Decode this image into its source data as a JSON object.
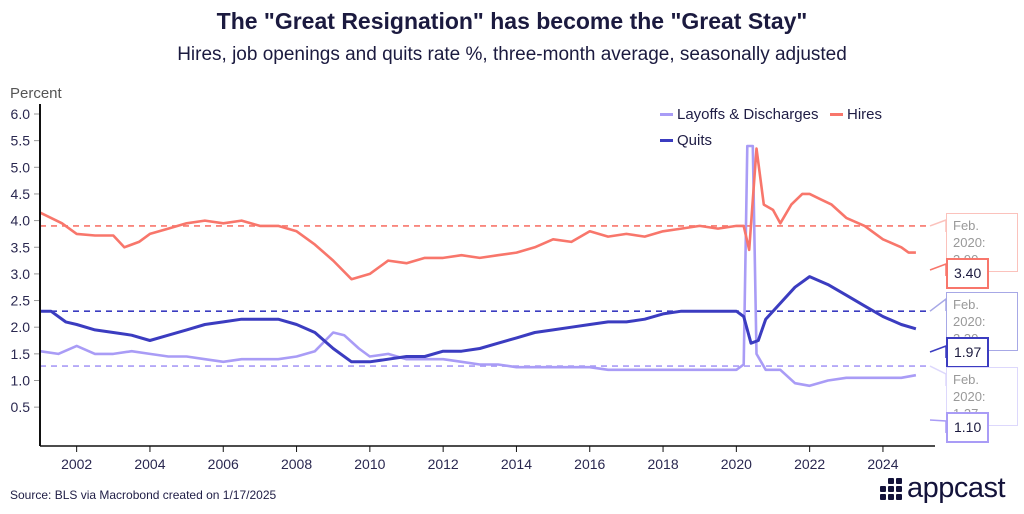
{
  "chart_data": {
    "type": "line",
    "title": "The \"Great Resignation\" has become the \"Great Stay\"",
    "subtitle": "Hires, job openings and quits rate %, three-month average, seasonally adjusted",
    "ylabel": "Percent",
    "ylim": [
      0.5,
      6.0
    ],
    "xlim": [
      2001,
      2025
    ],
    "yticks": [
      "6.0",
      "5.5",
      "5.0",
      "4.5",
      "4.0",
      "3.5",
      "3.0",
      "2.5",
      "2.0",
      "1.5",
      "1.0",
      "0.5"
    ],
    "xticks": [
      "2002",
      "2004",
      "2006",
      "2008",
      "2010",
      "2012",
      "2014",
      "2016",
      "2018",
      "2020",
      "2022",
      "2024"
    ],
    "legend_position": "top-right",
    "series": [
      {
        "name": "Hires",
        "color": "#f8766b",
        "baseline": 3.9,
        "baseline_label": "Feb. 2020:",
        "baseline_value": "3.90",
        "latest": "3.40",
        "points": [
          [
            2001,
            4.15
          ],
          [
            2001.3,
            4.05
          ],
          [
            2001.6,
            3.95
          ],
          [
            2002,
            3.75
          ],
          [
            2002.5,
            3.72
          ],
          [
            2003,
            3.72
          ],
          [
            2003.3,
            3.5
          ],
          [
            2003.7,
            3.6
          ],
          [
            2004,
            3.75
          ],
          [
            2004.5,
            3.85
          ],
          [
            2005,
            3.95
          ],
          [
            2005.5,
            4.0
          ],
          [
            2006,
            3.95
          ],
          [
            2006.5,
            4.0
          ],
          [
            2007,
            3.9
          ],
          [
            2007.5,
            3.9
          ],
          [
            2008,
            3.8
          ],
          [
            2008.5,
            3.55
          ],
          [
            2009,
            3.25
          ],
          [
            2009.5,
            2.9
          ],
          [
            2010,
            3.0
          ],
          [
            2010.5,
            3.25
          ],
          [
            2011,
            3.2
          ],
          [
            2011.5,
            3.3
          ],
          [
            2012,
            3.3
          ],
          [
            2012.5,
            3.35
          ],
          [
            2013,
            3.3
          ],
          [
            2013.5,
            3.35
          ],
          [
            2014,
            3.4
          ],
          [
            2014.5,
            3.5
          ],
          [
            2015,
            3.65
          ],
          [
            2015.5,
            3.6
          ],
          [
            2016,
            3.8
          ],
          [
            2016.5,
            3.7
          ],
          [
            2017,
            3.75
          ],
          [
            2017.5,
            3.7
          ],
          [
            2018,
            3.8
          ],
          [
            2018.5,
            3.85
          ],
          [
            2019,
            3.9
          ],
          [
            2019.5,
            3.85
          ],
          [
            2020,
            3.9
          ],
          [
            2020.2,
            3.9
          ],
          [
            2020.35,
            3.45
          ],
          [
            2020.55,
            5.35
          ],
          [
            2020.75,
            4.3
          ],
          [
            2021,
            4.2
          ],
          [
            2021.2,
            3.95
          ],
          [
            2021.5,
            4.3
          ],
          [
            2021.8,
            4.5
          ],
          [
            2022,
            4.5
          ],
          [
            2022.3,
            4.4
          ],
          [
            2022.6,
            4.3
          ],
          [
            2023,
            4.05
          ],
          [
            2023.5,
            3.9
          ],
          [
            2024,
            3.65
          ],
          [
            2024.5,
            3.5
          ],
          [
            2024.7,
            3.4
          ],
          [
            2024.9,
            3.4
          ]
        ]
      },
      {
        "name": "Quits",
        "color": "#3b3cc0",
        "baseline": 2.3,
        "baseline_label": "Feb. 2020:",
        "baseline_value": "2.30",
        "latest": "1.97",
        "points": [
          [
            2001,
            2.3
          ],
          [
            2001.3,
            2.3
          ],
          [
            2001.7,
            2.1
          ],
          [
            2002,
            2.05
          ],
          [
            2002.5,
            1.95
          ],
          [
            2003,
            1.9
          ],
          [
            2003.5,
            1.85
          ],
          [
            2004,
            1.75
          ],
          [
            2004.5,
            1.85
          ],
          [
            2005,
            1.95
          ],
          [
            2005.5,
            2.05
          ],
          [
            2006,
            2.1
          ],
          [
            2006.5,
            2.15
          ],
          [
            2007,
            2.15
          ],
          [
            2007.5,
            2.15
          ],
          [
            2008,
            2.05
          ],
          [
            2008.5,
            1.9
          ],
          [
            2009,
            1.6
          ],
          [
            2009.5,
            1.35
          ],
          [
            2010,
            1.35
          ],
          [
            2010.5,
            1.4
          ],
          [
            2011,
            1.45
          ],
          [
            2011.5,
            1.45
          ],
          [
            2012,
            1.55
          ],
          [
            2012.5,
            1.55
          ],
          [
            2013,
            1.6
          ],
          [
            2013.5,
            1.7
          ],
          [
            2014,
            1.8
          ],
          [
            2014.5,
            1.9
          ],
          [
            2015,
            1.95
          ],
          [
            2015.5,
            2.0
          ],
          [
            2016,
            2.05
          ],
          [
            2016.5,
            2.1
          ],
          [
            2017,
            2.1
          ],
          [
            2017.5,
            2.15
          ],
          [
            2018,
            2.25
          ],
          [
            2018.5,
            2.3
          ],
          [
            2019,
            2.3
          ],
          [
            2019.5,
            2.3
          ],
          [
            2020,
            2.3
          ],
          [
            2020.2,
            2.2
          ],
          [
            2020.4,
            1.7
          ],
          [
            2020.6,
            1.75
          ],
          [
            2020.8,
            2.15
          ],
          [
            2021.2,
            2.45
          ],
          [
            2021.6,
            2.75
          ],
          [
            2022,
            2.95
          ],
          [
            2022.5,
            2.8
          ],
          [
            2023,
            2.6
          ],
          [
            2023.5,
            2.4
          ],
          [
            2024,
            2.2
          ],
          [
            2024.5,
            2.05
          ],
          [
            2024.9,
            1.97
          ]
        ]
      },
      {
        "name": "Layoffs & Discharges",
        "color": "#a99cf6",
        "baseline": 1.27,
        "baseline_label": "Feb. 2020:",
        "baseline_value": "1.27",
        "latest": "1.10",
        "points": [
          [
            2001,
            1.55
          ],
          [
            2001.5,
            1.5
          ],
          [
            2002,
            1.65
          ],
          [
            2002.5,
            1.5
          ],
          [
            2003,
            1.5
          ],
          [
            2003.5,
            1.55
          ],
          [
            2004,
            1.5
          ],
          [
            2004.5,
            1.45
          ],
          [
            2005,
            1.45
          ],
          [
            2005.5,
            1.4
          ],
          [
            2006,
            1.35
          ],
          [
            2006.5,
            1.4
          ],
          [
            2007,
            1.4
          ],
          [
            2007.5,
            1.4
          ],
          [
            2008,
            1.45
          ],
          [
            2008.5,
            1.55
          ],
          [
            2009,
            1.9
          ],
          [
            2009.3,
            1.85
          ],
          [
            2009.7,
            1.6
          ],
          [
            2010,
            1.45
          ],
          [
            2010.5,
            1.5
          ],
          [
            2011,
            1.4
          ],
          [
            2011.5,
            1.4
          ],
          [
            2012,
            1.4
          ],
          [
            2012.5,
            1.35
          ],
          [
            2013,
            1.3
          ],
          [
            2013.5,
            1.3
          ],
          [
            2014,
            1.25
          ],
          [
            2014.5,
            1.25
          ],
          [
            2015,
            1.25
          ],
          [
            2015.5,
            1.25
          ],
          [
            2016,
            1.25
          ],
          [
            2016.5,
            1.2
          ],
          [
            2017,
            1.2
          ],
          [
            2017.5,
            1.2
          ],
          [
            2018,
            1.2
          ],
          [
            2018.5,
            1.2
          ],
          [
            2019,
            1.2
          ],
          [
            2019.5,
            1.2
          ],
          [
            2020,
            1.2
          ],
          [
            2020.2,
            1.3
          ],
          [
            2020.3,
            5.4
          ],
          [
            2020.45,
            5.4
          ],
          [
            2020.55,
            1.5
          ],
          [
            2020.8,
            1.2
          ],
          [
            2021.2,
            1.2
          ],
          [
            2021.6,
            0.95
          ],
          [
            2022,
            0.9
          ],
          [
            2022.5,
            1.0
          ],
          [
            2023,
            1.05
          ],
          [
            2023.5,
            1.05
          ],
          [
            2024,
            1.05
          ],
          [
            2024.5,
            1.05
          ],
          [
            2024.9,
            1.1
          ]
        ]
      }
    ]
  },
  "legend": {
    "layoffs": "Layoffs & Discharges",
    "hires": "Hires",
    "quits": "Quits"
  },
  "source": "Source: BLS via Macrobond created on 1/17/2025",
  "brand": "appcast"
}
